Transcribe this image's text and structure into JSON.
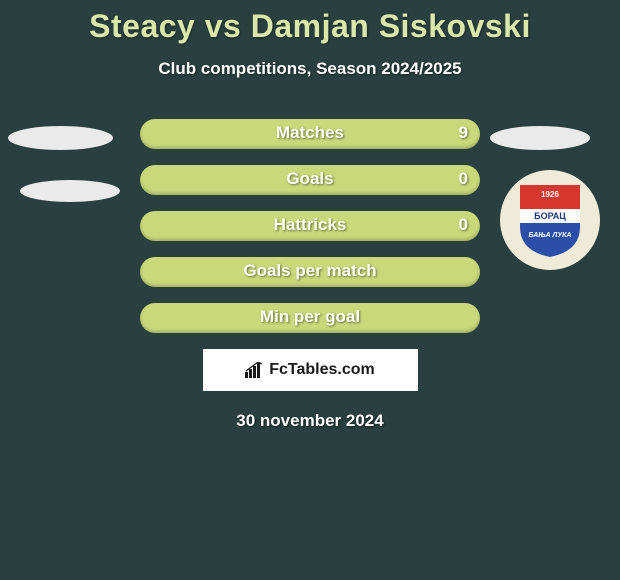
{
  "title": "Steacy vs Damjan Siskovski",
  "subtitle": "Club competitions, Season 2024/2025",
  "date": "30 november 2024",
  "watermark": "FcTables.com",
  "background_color": "#2a3f3f",
  "title_color": "#d9e8a8",
  "text_color": "#ffffff",
  "stats": [
    {
      "label": "Matches",
      "value_right": "9",
      "color": "#c9d97a"
    },
    {
      "label": "Goals",
      "value_right": "0",
      "color": "#c9d97a"
    },
    {
      "label": "Hattricks",
      "value_right": "0",
      "color": "#c9d97a"
    },
    {
      "label": "Goals per match",
      "value_right": "",
      "color": "#c9d97a"
    },
    {
      "label": "Min per goal",
      "value_right": "",
      "color": "#c9d97a"
    }
  ],
  "badge": {
    "year": "1926",
    "text_top": "БОРАЦ",
    "text_bottom": "БАЊА ЛУКА",
    "outer_color": "#f0ead8",
    "shield_top": "#d63830",
    "shield_bottom": "#2b4fa8",
    "stripe_color": "#ffffff"
  }
}
